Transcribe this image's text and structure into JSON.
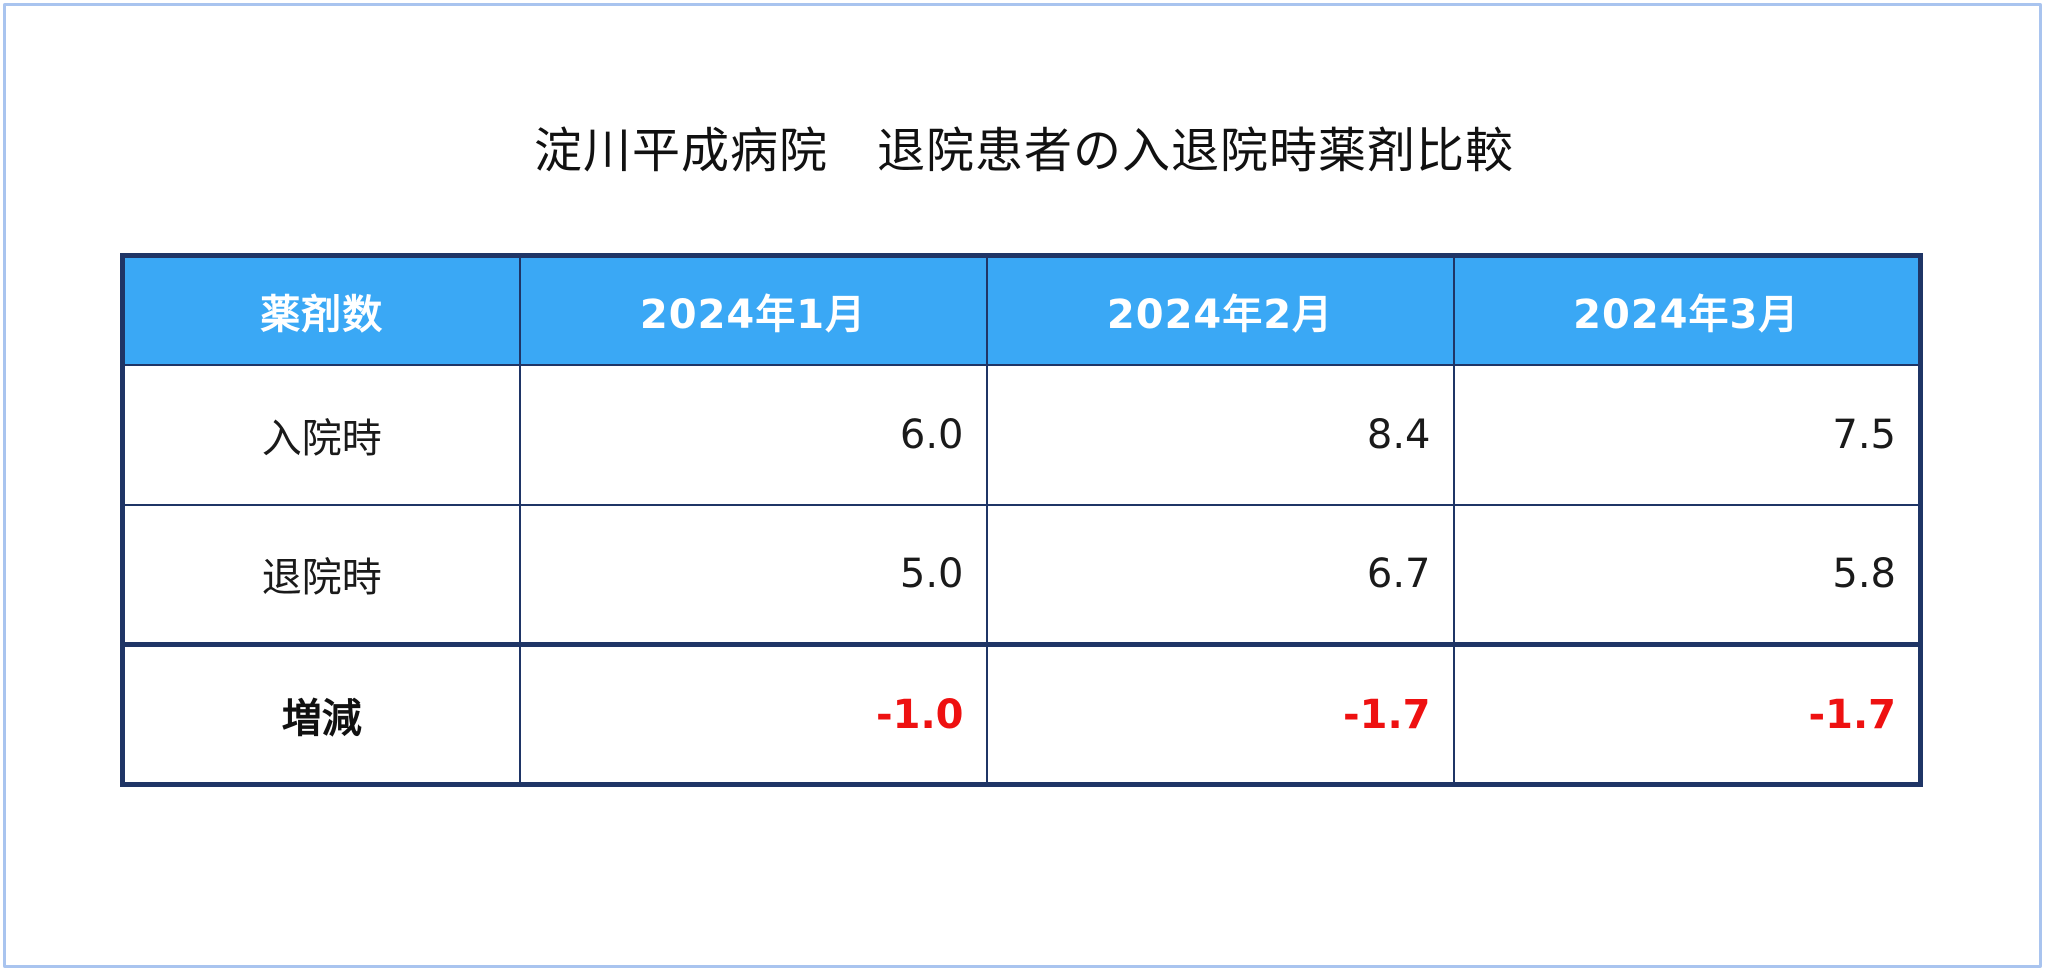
{
  "title": "淀川平成病院　退院患者の入退院時薬剤比較",
  "table": {
    "header": [
      "薬剤数",
      "2024年1月",
      "2024年2月",
      "2024年3月"
    ],
    "rows": [
      {
        "label": "入院時",
        "values": [
          "6.0",
          "8.4",
          "7.5"
        ]
      },
      {
        "label": "退院時",
        "values": [
          "5.0",
          "6.7",
          "5.8"
        ]
      },
      {
        "label": "増減",
        "values": [
          "-1.0",
          "-1.7",
          "-1.7"
        ]
      }
    ]
  },
  "colors": {
    "header_bg": "#3aa8f5",
    "border": "#1f3566",
    "negative": "#ee1111",
    "frame": "#a9c4ef"
  }
}
